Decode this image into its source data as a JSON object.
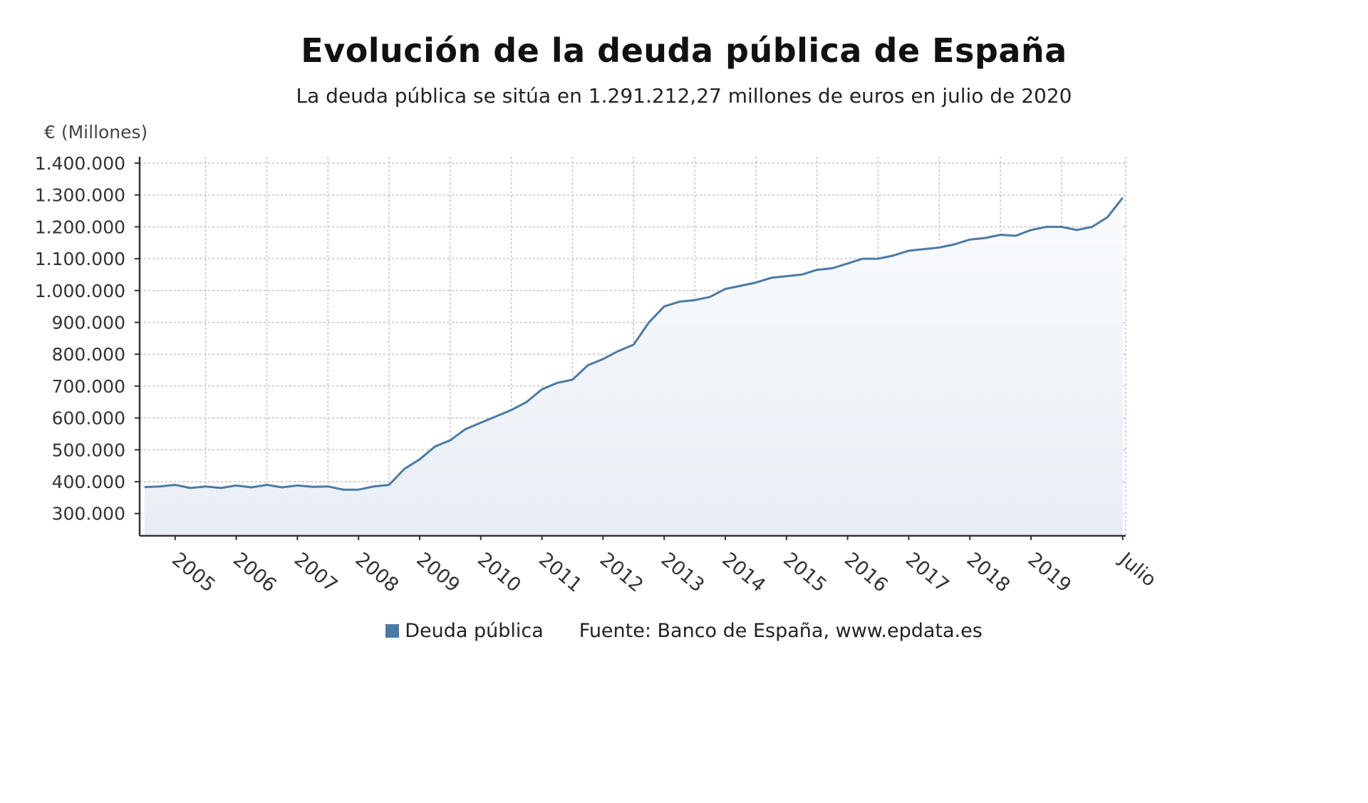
{
  "chart_data": {
    "type": "area",
    "title": "Evolución de la deuda pública de España",
    "subtitle": "La deuda pública se sitúa en 1.291.212,27 millones de euros en julio de 2020",
    "ylabel": "€ (Millones)",
    "ylim": [
      230000,
      1420000
    ],
    "yticks": [
      {
        "value": 1400000,
        "label": "1.400.000"
      },
      {
        "value": 1300000,
        "label": "1.300.000"
      },
      {
        "value": 1200000,
        "label": "1.200.000"
      },
      {
        "value": 1100000,
        "label": "1.100.000"
      },
      {
        "value": 1000000,
        "label": "1.000.000"
      },
      {
        "value": 900000,
        "label": "900.000"
      },
      {
        "value": 800000,
        "label": "800.000"
      },
      {
        "value": 700000,
        "label": "700.000"
      },
      {
        "value": 600000,
        "label": "600.000"
      },
      {
        "value": 500000,
        "label": "500.000"
      },
      {
        "value": 400000,
        "label": "400.000"
      },
      {
        "value": 300000,
        "label": "300.000"
      }
    ],
    "xticks": [
      {
        "year": 2005,
        "label": "2005"
      },
      {
        "year": 2006,
        "label": "2006"
      },
      {
        "year": 2007,
        "label": "2007"
      },
      {
        "year": 2008,
        "label": "2008"
      },
      {
        "year": 2009,
        "label": "2009"
      },
      {
        "year": 2010,
        "label": "2010"
      },
      {
        "year": 2011,
        "label": "2011"
      },
      {
        "year": 2012,
        "label": "2012"
      },
      {
        "year": 2013,
        "label": "2013"
      },
      {
        "year": 2014,
        "label": "2014"
      },
      {
        "year": 2015,
        "label": "2015"
      },
      {
        "year": 2016,
        "label": "2016"
      },
      {
        "year": 2017,
        "label": "2017"
      },
      {
        "year": 2018,
        "label": "2018"
      },
      {
        "year": 2019,
        "label": "2019"
      },
      {
        "year": 2020.5,
        "label": "Julio"
      }
    ],
    "grid": true,
    "series": [
      {
        "name": "Deuda pública",
        "color": "#4a7ba6",
        "x": [
          "2004-07",
          "2004-10",
          "2005-01",
          "2005-04",
          "2005-07",
          "2005-10",
          "2006-01",
          "2006-04",
          "2006-07",
          "2006-10",
          "2007-01",
          "2007-04",
          "2007-07",
          "2007-10",
          "2008-01",
          "2008-04",
          "2008-07",
          "2008-10",
          "2009-01",
          "2009-04",
          "2009-07",
          "2009-10",
          "2010-01",
          "2010-04",
          "2010-07",
          "2010-10",
          "2011-01",
          "2011-04",
          "2011-07",
          "2011-10",
          "2012-01",
          "2012-04",
          "2012-07",
          "2012-10",
          "2013-01",
          "2013-04",
          "2013-07",
          "2013-10",
          "2014-01",
          "2014-04",
          "2014-07",
          "2014-10",
          "2015-01",
          "2015-04",
          "2015-07",
          "2015-10",
          "2016-01",
          "2016-04",
          "2016-07",
          "2016-10",
          "2017-01",
          "2017-04",
          "2017-07",
          "2017-10",
          "2018-01",
          "2018-04",
          "2018-07",
          "2018-10",
          "2019-01",
          "2019-04",
          "2019-07",
          "2019-10",
          "2020-01",
          "2020-04",
          "2020-07"
        ],
        "values": [
          383000,
          385000,
          390000,
          380000,
          385000,
          380000,
          388000,
          382000,
          390000,
          382000,
          388000,
          384000,
          385000,
          375000,
          375000,
          385000,
          390000,
          440000,
          470000,
          510000,
          530000,
          565000,
          585000,
          605000,
          625000,
          650000,
          690000,
          710000,
          720000,
          765000,
          785000,
          810000,
          830000,
          900000,
          950000,
          965000,
          970000,
          980000,
          1005000,
          1015000,
          1025000,
          1040000,
          1045000,
          1050000,
          1065000,
          1070000,
          1085000,
          1100000,
          1100000,
          1110000,
          1125000,
          1130000,
          1135000,
          1145000,
          1160000,
          1165000,
          1175000,
          1172000,
          1190000,
          1200000,
          1200000,
          1190000,
          1200000,
          1230000,
          1291212.27
        ]
      }
    ],
    "legend": "bottom"
  },
  "source": "Fuente: Banco de España, www.epdata.es"
}
